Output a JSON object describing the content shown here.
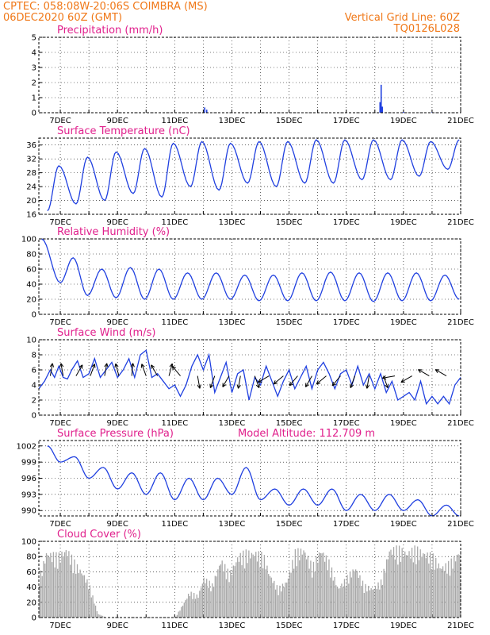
{
  "header": {
    "line1": "CPTEC:   058:08W-20:06S   COIMBRA (MS)",
    "line2": "06DEC2020 60Z (GMT)",
    "grid_note": "Vertical Grid Line: 60Z",
    "code": "TQ0126L028"
  },
  "colors": {
    "line": "#2040e0",
    "cloud": "#a8a8a8",
    "header": "#f07818",
    "title": "#e0208c"
  },
  "chart_data": [
    {
      "id": "precip",
      "type": "bar",
      "title": "Precipitation (mm/h)",
      "ylim": [
        0,
        5
      ],
      "yticks": [
        0,
        1,
        2,
        3,
        4,
        5
      ],
      "xrange": [
        6.25,
        21.0
      ],
      "xticks": [
        "7DEC",
        "9DEC",
        "11DEC",
        "13DEC",
        "15DEC",
        "17DEC",
        "19DEC",
        "21DEC"
      ],
      "x": [
        12.05,
        12.12,
        18.18,
        18.22,
        18.26,
        19.0,
        20.0
      ],
      "values": [
        0.35,
        0.2,
        0.7,
        1.85,
        0.4,
        0.05,
        0.03
      ]
    },
    {
      "id": "temp",
      "type": "line",
      "title": "Surface Temperature (nC)",
      "ylim": [
        16,
        38
      ],
      "yticks": [
        16,
        20,
        24,
        28,
        32,
        36
      ],
      "xrange": [
        6.25,
        21.0
      ],
      "xticks": [
        "7DEC",
        "9DEC",
        "11DEC",
        "13DEC",
        "15DEC",
        "17DEC",
        "19DEC",
        "21DEC"
      ],
      "min_x": [
        6.55,
        7.55,
        8.55,
        9.55,
        10.55,
        11.55,
        12.55,
        13.55,
        14.55,
        15.55,
        16.55,
        17.55,
        18.55,
        19.55,
        20.55
      ],
      "min_y": [
        17,
        19,
        20,
        22,
        21,
        24,
        23,
        25,
        24,
        25,
        25,
        26,
        26,
        27,
        29
      ],
      "max_x": [
        6.95,
        7.95,
        8.95,
        9.95,
        10.95,
        11.95,
        12.95,
        13.95,
        14.95,
        15.95,
        16.95,
        17.95,
        18.95,
        19.95,
        20.95
      ],
      "max_y": [
        30,
        32.5,
        34,
        35,
        36.5,
        37,
        36.5,
        37,
        37,
        37.5,
        37.5,
        37.5,
        37.5,
        37,
        37.5
      ]
    },
    {
      "id": "rh",
      "type": "line",
      "title": "Relative Humidity (%)",
      "ylim": [
        0,
        100
      ],
      "yticks": [
        0,
        20,
        40,
        60,
        80,
        100
      ],
      "xrange": [
        6.25,
        21.0
      ],
      "xticks": [
        "7DEC",
        "9DEC",
        "11DEC",
        "13DEC",
        "15DEC",
        "17DEC",
        "19DEC",
        "21DEC"
      ],
      "max_x": [
        6.35,
        7.45,
        8.45,
        9.45,
        10.45,
        11.45,
        12.45,
        13.45,
        14.45,
        15.45,
        16.45,
        17.45,
        18.45,
        19.45,
        20.45
      ],
      "max_y": [
        100,
        75,
        60,
        62,
        60,
        55,
        55,
        52,
        52,
        55,
        56,
        55,
        55,
        55,
        52
      ],
      "min_x": [
        7.0,
        7.95,
        8.95,
        9.95,
        10.95,
        11.95,
        12.95,
        13.95,
        14.95,
        15.95,
        16.95,
        17.95,
        18.95,
        19.95,
        20.95
      ],
      "min_y": [
        42,
        25,
        22,
        20,
        20,
        20,
        20,
        18,
        18,
        18,
        18,
        17,
        18,
        18,
        20
      ]
    },
    {
      "id": "wind",
      "type": "line",
      "title": "Surface Wind (m/s)",
      "ylim": [
        0,
        10
      ],
      "yticks": [
        0,
        2,
        4,
        6,
        8,
        10
      ],
      "xrange": [
        6.25,
        21.0
      ],
      "xticks": [
        "7DEC",
        "9DEC",
        "11DEC",
        "13DEC",
        "15DEC",
        "17DEC",
        "19DEC",
        "21DEC"
      ],
      "x": [
        6.25,
        6.45,
        6.65,
        6.8,
        6.95,
        7.1,
        7.25,
        7.4,
        7.6,
        7.8,
        8.0,
        8.2,
        8.4,
        8.6,
        8.8,
        9.0,
        9.2,
        9.4,
        9.6,
        9.8,
        10.0,
        10.2,
        10.4,
        10.6,
        10.8,
        11.0,
        11.2,
        11.4,
        11.6,
        11.8,
        12.0,
        12.2,
        12.4,
        12.6,
        12.8,
        13.0,
        13.2,
        13.4,
        13.6,
        13.8,
        14.0,
        14.2,
        14.4,
        14.6,
        14.8,
        15.0,
        15.2,
        15.4,
        15.6,
        15.8,
        16.0,
        16.2,
        16.4,
        16.6,
        16.8,
        17.0,
        17.2,
        17.4,
        17.6,
        17.8,
        18.0,
        18.2,
        18.4,
        18.6,
        18.8,
        19.0,
        19.2,
        19.4,
        19.6,
        19.8,
        20.0,
        20.2,
        20.4,
        20.6,
        20.8,
        21.0
      ],
      "y": [
        3.5,
        4.5,
        6.0,
        5.0,
        6.5,
        5.0,
        4.8,
        6.0,
        7.2,
        5.0,
        5.5,
        7.5,
        5.0,
        6.0,
        7.0,
        5.0,
        6.0,
        7.5,
        5.0,
        8.0,
        8.6,
        5.0,
        5.5,
        4.5,
        3.5,
        4.0,
        2.5,
        4.0,
        6.5,
        8.0,
        6.0,
        8.0,
        3.0,
        5.0,
        7.0,
        3.0,
        5.5,
        6.0,
        2.0,
        5.0,
        4.0,
        6.5,
        4.5,
        2.5,
        4.5,
        6.0,
        3.5,
        5.0,
        6.5,
        3.5,
        6.0,
        7.0,
        5.5,
        3.5,
        5.5,
        6.0,
        4.0,
        6.5,
        4.0,
        5.5,
        3.5,
        5.5,
        3.0,
        4.5,
        2.0,
        2.5,
        3.0,
        2.0,
        4.5,
        1.5,
        2.5,
        1.5,
        2.5,
        1.5,
        4.0,
        5.0
      ],
      "arrow_x": [
        6.65,
        7.1,
        7.55,
        8.05,
        8.55,
        9.05,
        9.5,
        10.0,
        10.4,
        10.8,
        11.2,
        11.8,
        12.4,
        12.9,
        13.3,
        13.8,
        14.3,
        14.8,
        15.3,
        15.8,
        16.3,
        16.8,
        17.3,
        17.8,
        18.3,
        18.7,
        19.3,
        19.9,
        20.5
      ],
      "arrow_dir": [
        10,
        -10,
        30,
        20,
        10,
        -15,
        5,
        -20,
        -30,
        15,
        -40,
        170,
        200,
        210,
        190,
        160,
        240,
        230,
        220,
        210,
        230,
        220,
        200,
        190,
        160,
        260,
        240,
        300,
        300
      ]
    },
    {
      "id": "press",
      "type": "line",
      "title": "Surface Pressure (hPa)",
      "annotation": "Model Altitude: 112.709 m",
      "ylim": [
        989,
        1003
      ],
      "yticks": [
        990,
        993,
        996,
        999,
        1002
      ],
      "xrange": [
        6.25,
        21.0
      ],
      "xticks": [
        "7DEC",
        "9DEC",
        "11DEC",
        "13DEC",
        "15DEC",
        "17DEC",
        "19DEC",
        "21DEC"
      ],
      "max_x": [
        6.55,
        7.5,
        8.5,
        9.5,
        10.5,
        11.5,
        12.5,
        13.5,
        14.5,
        15.5,
        16.5,
        17.5,
        18.5,
        19.5,
        20.5
      ],
      "max_y": [
        1002,
        1000,
        998,
        997,
        997,
        996,
        996,
        998,
        994,
        994,
        994,
        993,
        993,
        992,
        991
      ],
      "min_x": [
        7.0,
        8.0,
        9.0,
        10.0,
        11.0,
        12.0,
        13.0,
        14.0,
        15.0,
        16.0,
        17.0,
        18.0,
        19.0,
        20.0,
        20.95
      ],
      "min_y": [
        999,
        996,
        994,
        993,
        992,
        992,
        993,
        992,
        991,
        991,
        990,
        990,
        990,
        989,
        989
      ]
    },
    {
      "id": "cloud",
      "type": "bar",
      "title": "Cloud Cover (%)",
      "ylim": [
        0,
        100
      ],
      "yticks": [
        0,
        20,
        40,
        60,
        80,
        100
      ],
      "xrange": [
        6.25,
        21.0
      ],
      "xticks": [
        "7DEC",
        "9DEC",
        "11DEC",
        "13DEC",
        "15DEC",
        "17DEC",
        "19DEC",
        "21DEC"
      ],
      "env_x": [
        6.25,
        6.5,
        6.9,
        7.2,
        7.5,
        7.8,
        8.0,
        8.3,
        8.6,
        8.9,
        9.3,
        9.8,
        10.2,
        10.6,
        11.0,
        11.3,
        11.5,
        11.8,
        12.0,
        12.3,
        12.6,
        12.9,
        13.2,
        13.5,
        13.8,
        14.1,
        14.3,
        14.6,
        14.9,
        15.2,
        15.5,
        15.8,
        16.1,
        16.4,
        16.7,
        17.0,
        17.3,
        17.6,
        17.9,
        18.2,
        18.5,
        18.8,
        19.1,
        19.4,
        19.7,
        20.0,
        20.3,
        20.6,
        21.0
      ],
      "env_y": [
        55,
        90,
        85,
        95,
        75,
        60,
        45,
        5,
        0,
        0,
        0,
        0,
        0,
        0,
        0,
        20,
        35,
        30,
        55,
        45,
        80,
        60,
        85,
        90,
        90,
        85,
        60,
        40,
        50,
        90,
        95,
        70,
        95,
        75,
        40,
        55,
        70,
        45,
        40,
        50,
        95,
        95,
        90,
        95,
        90,
        85,
        70,
        75,
        95
      ]
    }
  ]
}
